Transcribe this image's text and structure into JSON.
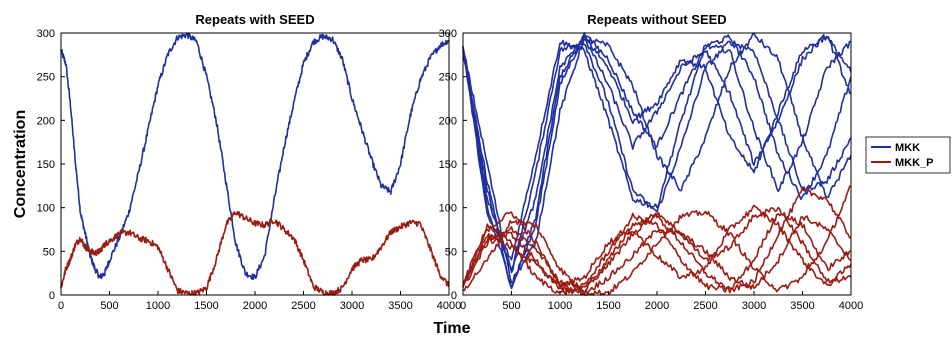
{
  "figure": {
    "xlabel": "Time",
    "ylabel": "Concentration",
    "legend": {
      "placement": "right",
      "entries": [
        {
          "name": "MKK",
          "color": "#1f2f9e"
        },
        {
          "name": "MKK_P",
          "color": "#9a1c12"
        }
      ]
    }
  },
  "chart_data": [
    {
      "type": "line",
      "title": "Repeats with SEED",
      "xlim": [
        0,
        4000
      ],
      "ylim": [
        0,
        300
      ],
      "xticks": [
        0,
        500,
        1000,
        1500,
        2000,
        2500,
        3000,
        3500,
        4000
      ],
      "yticks": [
        0,
        50,
        100,
        150,
        200,
        250,
        300
      ],
      "grid": false,
      "series": [
        {
          "name": "MKK",
          "color": "#1f2f9e",
          "x": [
            0,
            50,
            100,
            150,
            200,
            250,
            300,
            350,
            400,
            450,
            500,
            600,
            700,
            800,
            900,
            1000,
            1100,
            1200,
            1300,
            1400,
            1500,
            1600,
            1700,
            1800,
            1900,
            2000,
            2100,
            2200,
            2300,
            2400,
            2500,
            2600,
            2700,
            2800,
            2900,
            3000,
            3100,
            3200,
            3300,
            3400,
            3500,
            3600,
            3700,
            3800,
            3900,
            4000
          ],
          "y": [
            280,
            265,
            215,
            150,
            95,
            70,
            45,
            30,
            20,
            25,
            40,
            65,
            95,
            140,
            190,
            240,
            275,
            295,
            298,
            290,
            250,
            200,
            130,
            60,
            25,
            20,
            45,
            110,
            170,
            220,
            265,
            290,
            296,
            293,
            270,
            225,
            190,
            155,
            125,
            118,
            150,
            205,
            245,
            270,
            285,
            292
          ]
        },
        {
          "name": "MKK_P",
          "color": "#9a1c12",
          "x": [
            0,
            50,
            100,
            150,
            200,
            250,
            300,
            350,
            400,
            450,
            500,
            600,
            700,
            800,
            900,
            1000,
            1100,
            1200,
            1300,
            1400,
            1500,
            1600,
            1700,
            1800,
            1900,
            2000,
            2100,
            2200,
            2300,
            2400,
            2500,
            2600,
            2700,
            2800,
            2900,
            3000,
            3100,
            3200,
            3300,
            3400,
            3500,
            3600,
            3700,
            3800,
            3900,
            4000
          ],
          "y": [
            8,
            30,
            42,
            58,
            65,
            55,
            50,
            48,
            50,
            58,
            62,
            70,
            72,
            65,
            62,
            55,
            30,
            5,
            2,
            2,
            8,
            40,
            80,
            95,
            88,
            82,
            80,
            86,
            75,
            65,
            40,
            10,
            3,
            2,
            8,
            30,
            40,
            40,
            55,
            72,
            78,
            83,
            82,
            55,
            25,
            10
          ]
        }
      ]
    },
    {
      "type": "line",
      "title": "Repeats without SEED",
      "xlim": [
        0,
        4000
      ],
      "ylim": [
        0,
        300
      ],
      "xticks": [
        0,
        500,
        1000,
        1500,
        2000,
        2500,
        3000,
        3500,
        4000
      ],
      "yticks": [
        0,
        50,
        100,
        150,
        200,
        250,
        300
      ],
      "grid": false,
      "series": [
        {
          "name": "MKK",
          "color": "#1f2f9e",
          "x": [
            0,
            250,
            500,
            750,
            1000,
            1250,
            1500,
            1750,
            2000,
            2250,
            2500,
            2750,
            3000,
            3250,
            3500,
            3750,
            4000
          ],
          "y": [
            282,
            100,
            10,
            80,
            240,
            298,
            270,
            210,
            170,
            230,
            285,
            295,
            250,
            160,
            110,
            160,
            250
          ]
        },
        {
          "name": "MKK",
          "color": "#1f2f9e",
          "x": [
            0,
            250,
            500,
            750,
            1000,
            1250,
            1500,
            1750,
            2000,
            2250,
            2500,
            2750,
            3000,
            3250,
            3500,
            3750,
            4000
          ],
          "y": [
            280,
            120,
            25,
            140,
            280,
            290,
            220,
            120,
            95,
            170,
            260,
            290,
            280,
            200,
            120,
            130,
            180
          ]
        },
        {
          "name": "MKK",
          "color": "#1f2f9e",
          "x": [
            0,
            250,
            500,
            750,
            1000,
            1250,
            1500,
            1750,
            2000,
            2250,
            2500,
            2750,
            3000,
            3250,
            3500,
            3750,
            4000
          ],
          "y": [
            284,
            90,
            40,
            160,
            290,
            280,
            200,
            110,
            100,
            200,
            285,
            280,
            190,
            120,
            175,
            260,
            290
          ]
        },
        {
          "name": "MKK",
          "color": "#1f2f9e",
          "x": [
            0,
            250,
            500,
            750,
            1000,
            1250,
            1500,
            1750,
            2000,
            2250,
            2500,
            2750,
            3000,
            3250,
            3500,
            3750,
            4000
          ],
          "y": [
            283,
            150,
            15,
            60,
            210,
            295,
            285,
            240,
            160,
            120,
            180,
            260,
            298,
            270,
            180,
            110,
            160
          ]
        },
        {
          "name": "MKK",
          "color": "#1f2f9e",
          "x": [
            0,
            250,
            500,
            750,
            1000,
            1250,
            1500,
            1750,
            2000,
            2250,
            2500,
            2750,
            3000,
            3250,
            3500,
            3750,
            4000
          ],
          "y": [
            281,
            110,
            30,
            110,
            260,
            295,
            240,
            170,
            210,
            260,
            280,
            230,
            150,
            200,
            270,
            298,
            230
          ]
        },
        {
          "name": "MKK",
          "color": "#1f2f9e",
          "x": [
            0,
            250,
            500,
            750,
            1000,
            1250,
            1500,
            1750,
            2000,
            2250,
            2500,
            2750,
            3000,
            3250,
            3500,
            3750,
            4000
          ],
          "y": [
            279,
            130,
            5,
            90,
            250,
            296,
            260,
            200,
            220,
            270,
            260,
            180,
            140,
            210,
            280,
            296,
            255
          ]
        },
        {
          "name": "MKK_P",
          "color": "#9a1c12",
          "x": [
            0,
            250,
            500,
            750,
            1000,
            1250,
            1500,
            1750,
            2000,
            2250,
            2500,
            2750,
            3000,
            3250,
            3500,
            3750,
            4000
          ],
          "y": [
            10,
            75,
            95,
            60,
            10,
            2,
            20,
            45,
            75,
            70,
            50,
            20,
            8,
            40,
            90,
            75,
            40
          ]
        },
        {
          "name": "MKK_P",
          "color": "#9a1c12",
          "x": [
            0,
            250,
            500,
            750,
            1000,
            1250,
            1500,
            1750,
            2000,
            2250,
            2500,
            2750,
            3000,
            3250,
            3500,
            3750,
            4000
          ],
          "y": [
            8,
            60,
            70,
            40,
            5,
            5,
            40,
            80,
            90,
            60,
            25,
            5,
            15,
            70,
            120,
            110,
            65
          ]
        },
        {
          "name": "MKK_P",
          "color": "#9a1c12",
          "x": [
            0,
            250,
            500,
            750,
            1000,
            1250,
            1500,
            1750,
            2000,
            2250,
            2500,
            2750,
            3000,
            3250,
            3500,
            3750,
            4000
          ],
          "y": [
            12,
            80,
            60,
            20,
            2,
            10,
            50,
            90,
            80,
            40,
            10,
            5,
            40,
            95,
            80,
            30,
            50
          ]
        },
        {
          "name": "MKK_P",
          "color": "#9a1c12",
          "x": [
            0,
            250,
            500,
            750,
            1000,
            1250,
            1500,
            1750,
            2000,
            2250,
            2500,
            2750,
            3000,
            3250,
            3500,
            3750,
            4000
          ],
          "y": [
            5,
            40,
            85,
            80,
            30,
            2,
            3,
            25,
            60,
            90,
            95,
            70,
            30,
            5,
            20,
            60,
            125
          ]
        },
        {
          "name": "MKK_P",
          "color": "#9a1c12",
          "x": [
            0,
            250,
            500,
            750,
            1000,
            1250,
            1500,
            1750,
            2000,
            2250,
            2500,
            2750,
            3000,
            3250,
            3500,
            3750,
            4000
          ],
          "y": [
            9,
            70,
            55,
            35,
            10,
            20,
            60,
            75,
            45,
            20,
            30,
            75,
            100,
            80,
            40,
            10,
            35
          ]
        },
        {
          "name": "MKK_P",
          "color": "#9a1c12",
          "x": [
            0,
            250,
            500,
            750,
            1000,
            1250,
            1500,
            1750,
            2000,
            2250,
            2500,
            2750,
            3000,
            3250,
            3500,
            3750,
            4000
          ],
          "y": [
            11,
            65,
            75,
            55,
            15,
            8,
            35,
            70,
            95,
            70,
            40,
            55,
            90,
            100,
            60,
            15,
            20
          ]
        }
      ]
    }
  ]
}
